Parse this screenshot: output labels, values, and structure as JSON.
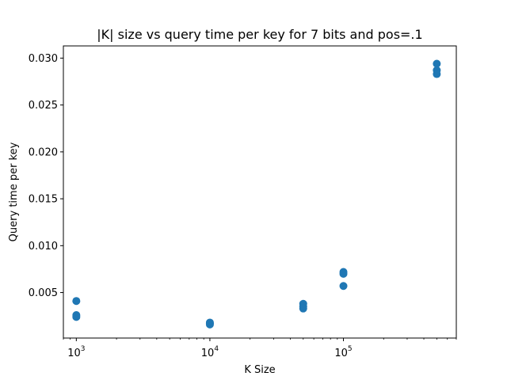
{
  "chart_data": {
    "type": "scatter",
    "title": "|K| size vs query time per key for 7 bits and pos=.1",
    "xlabel": "K Size",
    "ylabel": "Query time per key",
    "xscale": "log",
    "xlim": [
      800,
      700000
    ],
    "ylim": [
      0.00015,
      0.0313
    ],
    "grid": false,
    "color": "#1f77b4",
    "xticks": [
      {
        "value": 1000,
        "base": "10",
        "exp": "3"
      },
      {
        "value": 10000,
        "base": "10",
        "exp": "4"
      },
      {
        "value": 100000,
        "base": "10",
        "exp": "5"
      }
    ],
    "yticks": [
      {
        "value": 0.005,
        "label": "0.005"
      },
      {
        "value": 0.01,
        "label": "0.010"
      },
      {
        "value": 0.015,
        "label": "0.015"
      },
      {
        "value": 0.02,
        "label": "0.020"
      },
      {
        "value": 0.025,
        "label": "0.025"
      },
      {
        "value": 0.03,
        "label": "0.030"
      }
    ],
    "points": [
      {
        "x": 1000,
        "y": 0.0041
      },
      {
        "x": 1000,
        "y": 0.0026
      },
      {
        "x": 1000,
        "y": 0.0024
      },
      {
        "x": 10000,
        "y": 0.0018
      },
      {
        "x": 10000,
        "y": 0.0017
      },
      {
        "x": 10000,
        "y": 0.0016
      },
      {
        "x": 50000,
        "y": 0.0038
      },
      {
        "x": 50000,
        "y": 0.0035
      },
      {
        "x": 50000,
        "y": 0.0033
      },
      {
        "x": 100000,
        "y": 0.0072
      },
      {
        "x": 100000,
        "y": 0.007
      },
      {
        "x": 100000,
        "y": 0.0057
      },
      {
        "x": 500000,
        "y": 0.0294
      },
      {
        "x": 500000,
        "y": 0.0287
      },
      {
        "x": 500000,
        "y": 0.0283
      }
    ]
  }
}
